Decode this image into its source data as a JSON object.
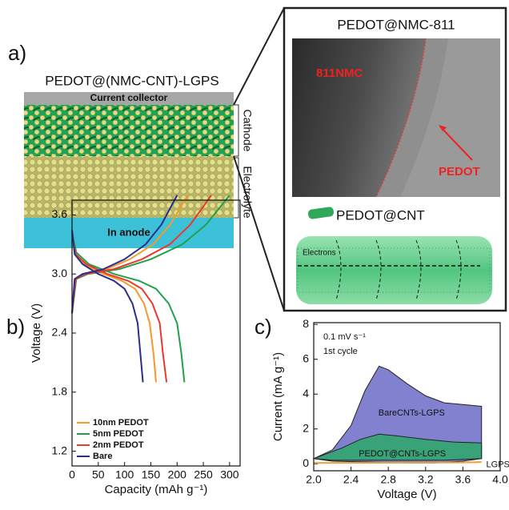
{
  "panel_a": {
    "label": "a)",
    "schematic_title": "PEDOT@(NMC-CNT)-LGPS",
    "current_collector": "Current collector",
    "cathode": "Cathode",
    "electrolyte": "Electrolyte",
    "anode": "In anode",
    "tem_title": "PEDOT@NMC-811",
    "tem_core": "811NMC",
    "tem_shell": "PEDOT",
    "cnt_title": "PEDOT@CNT",
    "electrons": "Electrons"
  },
  "chart_data": [
    {
      "type": "line",
      "panel_label": "b)",
      "x_label": "Capacity (mAh g⁻¹)",
      "y_label": "Voltage (V)",
      "xlim": [
        0,
        320
      ],
      "ylim": [
        1.05,
        3.75
      ],
      "xticks": [
        0,
        50,
        100,
        150,
        200,
        250,
        300
      ],
      "yticks": [
        1.2,
        1.8,
        2.4,
        {
          "value": 3,
          "label": "3.0"
        },
        3.6
      ],
      "legend": "lower left",
      "series": [
        {
          "name": "10nm PEDOT",
          "color": "#f39a2c",
          "discharge": {
            "x": [
              0,
              6,
              24,
              60,
              95,
              120,
              137,
              148,
              155,
              160
            ],
            "values": [
              3.38,
              3.2,
              3.1,
              3.0,
              2.93,
              2.85,
              2.7,
              2.5,
              2.2,
              1.9
            ]
          },
          "charge": {
            "x": [
              0,
              6,
              22,
              66,
              110,
              154,
              187,
              209,
              220
            ],
            "values": [
              2.6,
              2.95,
              3.0,
              3.05,
              3.15,
              3.3,
              3.5,
              3.7,
              3.8
            ]
          }
        },
        {
          "name": "5nm PEDOT",
          "color": "#22a04a",
          "discharge": {
            "x": [
              0,
              8,
              32,
              80,
              128,
              160,
              184,
              200,
              208,
              214
            ],
            "values": [
              3.42,
              3.22,
              3.1,
              3.0,
              2.93,
              2.85,
              2.7,
              2.5,
              2.2,
              1.9
            ]
          },
          "charge": {
            "x": [
              0,
              8,
              30,
              90,
              150,
              210,
              255,
              285,
              300
            ],
            "values": [
              2.6,
              2.95,
              3.0,
              3.05,
              3.15,
              3.3,
              3.5,
              3.7,
              3.8
            ]
          }
        },
        {
          "name": "2nm PEDOT",
          "color": "#e8392c",
          "discharge": {
            "x": [
              0,
              7,
              27,
              67,
              107,
              133,
              153,
              167,
              173,
              180
            ],
            "values": [
              3.4,
              3.2,
              3.1,
              3.0,
              2.93,
              2.85,
              2.7,
              2.5,
              2.2,
              1.9
            ]
          },
          "charge": {
            "x": [
              0,
              7,
              26,
              80,
              133,
              186,
              225,
              252,
              265
            ],
            "values": [
              2.6,
              2.95,
              3.0,
              3.05,
              3.15,
              3.3,
              3.5,
              3.7,
              3.8
            ]
          }
        },
        {
          "name": "Bare",
          "color": "#2c2e8c",
          "discharge": {
            "x": [
              0,
              5,
              20,
              50,
              80,
              100,
              115,
              125,
              130,
              135
            ],
            "values": [
              3.45,
              3.2,
              3.1,
              3.0,
              2.93,
              2.85,
              2.7,
              2.5,
              2.2,
              1.9
            ]
          },
          "charge": {
            "x": [
              0,
              5,
              20,
              60,
              100,
              140,
              170,
              190,
              200
            ],
            "values": [
              2.6,
              2.95,
              3.0,
              3.05,
              3.15,
              3.3,
              3.5,
              3.7,
              3.8
            ]
          }
        }
      ]
    },
    {
      "type": "area",
      "panel_label": "c)",
      "x_label": "Voltage (V)",
      "y_label": "Current (mA g⁻¹)",
      "xlim": [
        2,
        4
      ],
      "ylim": [
        -0.4,
        8.1
      ],
      "xticks": [
        {
          "value": 2,
          "label": "2.0"
        },
        2.4,
        2.8,
        3.2,
        3.6,
        {
          "value": 4,
          "label": "4.0"
        }
      ],
      "yticks": [
        0,
        2,
        4,
        6,
        8
      ],
      "annotations": [
        "0.1 mV s⁻¹",
        "1st cycle"
      ],
      "series": [
        {
          "name": "BareCNTs-LGPS",
          "color": "#6b6bc8",
          "x": [
            2.0,
            2.2,
            2.4,
            2.55,
            2.7,
            2.8,
            3.0,
            3.2,
            3.4,
            3.6,
            3.8,
            3.8,
            3.6,
            3.3,
            3.0,
            2.6,
            2.2,
            2.0
          ],
          "values": [
            0.3,
            0.8,
            2.2,
            4.2,
            5.6,
            5.4,
            4.6,
            3.9,
            3.5,
            3.4,
            3.3,
            0.3,
            0.15,
            0.05,
            0.05,
            0.1,
            0.15,
            0.3
          ]
        },
        {
          "name": "PEDOT@CNTs-LGPS",
          "color": "#2ea86a",
          "x": [
            2.0,
            2.3,
            2.5,
            2.7,
            2.9,
            3.2,
            3.5,
            3.8,
            3.8,
            3.4,
            2.8,
            2.2,
            2.0
          ],
          "values": [
            0.3,
            0.9,
            1.4,
            1.7,
            1.6,
            1.4,
            1.25,
            1.2,
            0.3,
            0.2,
            0.2,
            0.2,
            0.3
          ]
        },
        {
          "name": "LGPS",
          "color": "#e8a13a",
          "x": [
            2.0,
            2.8,
            3.6,
            3.8
          ],
          "values": [
            0.05,
            0.06,
            0.08,
            0.1
          ]
        }
      ]
    }
  ]
}
